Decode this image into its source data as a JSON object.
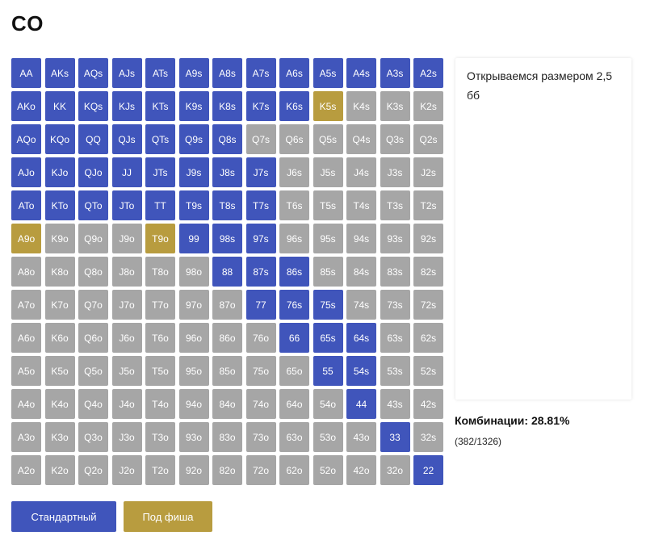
{
  "page": {
    "title": "CO"
  },
  "colors": {
    "action": "#4055bb",
    "fold": "#a6a6a6",
    "limp": "#b89c3f"
  },
  "grid": {
    "rows": [
      [
        [
          "AA",
          "a"
        ],
        [
          "AKs",
          "a"
        ],
        [
          "AQs",
          "a"
        ],
        [
          "AJs",
          "a"
        ],
        [
          "ATs",
          "a"
        ],
        [
          "A9s",
          "a"
        ],
        [
          "A8s",
          "a"
        ],
        [
          "A7s",
          "a"
        ],
        [
          "A6s",
          "a"
        ],
        [
          "A5s",
          "a"
        ],
        [
          "A4s",
          "a"
        ],
        [
          "A3s",
          "a"
        ],
        [
          "A2s",
          "a"
        ]
      ],
      [
        [
          "AKo",
          "a"
        ],
        [
          "KK",
          "a"
        ],
        [
          "KQs",
          "a"
        ],
        [
          "KJs",
          "a"
        ],
        [
          "KTs",
          "a"
        ],
        [
          "K9s",
          "a"
        ],
        [
          "K8s",
          "a"
        ],
        [
          "K7s",
          "a"
        ],
        [
          "K6s",
          "a"
        ],
        [
          "K5s",
          "l"
        ],
        [
          "K4s",
          "f"
        ],
        [
          "K3s",
          "f"
        ],
        [
          "K2s",
          "f"
        ]
      ],
      [
        [
          "AQo",
          "a"
        ],
        [
          "KQo",
          "a"
        ],
        [
          "QQ",
          "a"
        ],
        [
          "QJs",
          "a"
        ],
        [
          "QTs",
          "a"
        ],
        [
          "Q9s",
          "a"
        ],
        [
          "Q8s",
          "a"
        ],
        [
          "Q7s",
          "f"
        ],
        [
          "Q6s",
          "f"
        ],
        [
          "Q5s",
          "f"
        ],
        [
          "Q4s",
          "f"
        ],
        [
          "Q3s",
          "f"
        ],
        [
          "Q2s",
          "f"
        ]
      ],
      [
        [
          "AJo",
          "a"
        ],
        [
          "KJo",
          "a"
        ],
        [
          "QJo",
          "a"
        ],
        [
          "JJ",
          "a"
        ],
        [
          "JTs",
          "a"
        ],
        [
          "J9s",
          "a"
        ],
        [
          "J8s",
          "a"
        ],
        [
          "J7s",
          "a"
        ],
        [
          "J6s",
          "f"
        ],
        [
          "J5s",
          "f"
        ],
        [
          "J4s",
          "f"
        ],
        [
          "J3s",
          "f"
        ],
        [
          "J2s",
          "f"
        ]
      ],
      [
        [
          "ATo",
          "a"
        ],
        [
          "KTo",
          "a"
        ],
        [
          "QTo",
          "a"
        ],
        [
          "JTo",
          "a"
        ],
        [
          "TT",
          "a"
        ],
        [
          "T9s",
          "a"
        ],
        [
          "T8s",
          "a"
        ],
        [
          "T7s",
          "a"
        ],
        [
          "T6s",
          "f"
        ],
        [
          "T5s",
          "f"
        ],
        [
          "T4s",
          "f"
        ],
        [
          "T3s",
          "f"
        ],
        [
          "T2s",
          "f"
        ]
      ],
      [
        [
          "A9o",
          "l"
        ],
        [
          "K9o",
          "f"
        ],
        [
          "Q9o",
          "f"
        ],
        [
          "J9o",
          "f"
        ],
        [
          "T9o",
          "l"
        ],
        [
          "99",
          "a"
        ],
        [
          "98s",
          "a"
        ],
        [
          "97s",
          "a"
        ],
        [
          "96s",
          "f"
        ],
        [
          "95s",
          "f"
        ],
        [
          "94s",
          "f"
        ],
        [
          "93s",
          "f"
        ],
        [
          "92s",
          "f"
        ]
      ],
      [
        [
          "A8o",
          "f"
        ],
        [
          "K8o",
          "f"
        ],
        [
          "Q8o",
          "f"
        ],
        [
          "J8o",
          "f"
        ],
        [
          "T8o",
          "f"
        ],
        [
          "98o",
          "f"
        ],
        [
          "88",
          "a"
        ],
        [
          "87s",
          "a"
        ],
        [
          "86s",
          "a"
        ],
        [
          "85s",
          "f"
        ],
        [
          "84s",
          "f"
        ],
        [
          "83s",
          "f"
        ],
        [
          "82s",
          "f"
        ]
      ],
      [
        [
          "A7o",
          "f"
        ],
        [
          "K7o",
          "f"
        ],
        [
          "Q7o",
          "f"
        ],
        [
          "J7o",
          "f"
        ],
        [
          "T7o",
          "f"
        ],
        [
          "97o",
          "f"
        ],
        [
          "87o",
          "f"
        ],
        [
          "77",
          "a"
        ],
        [
          "76s",
          "a"
        ],
        [
          "75s",
          "a"
        ],
        [
          "74s",
          "f"
        ],
        [
          "73s",
          "f"
        ],
        [
          "72s",
          "f"
        ]
      ],
      [
        [
          "A6o",
          "f"
        ],
        [
          "K6o",
          "f"
        ],
        [
          "Q6o",
          "f"
        ],
        [
          "J6o",
          "f"
        ],
        [
          "T6o",
          "f"
        ],
        [
          "96o",
          "f"
        ],
        [
          "86o",
          "f"
        ],
        [
          "76o",
          "f"
        ],
        [
          "66",
          "a"
        ],
        [
          "65s",
          "a"
        ],
        [
          "64s",
          "a"
        ],
        [
          "63s",
          "f"
        ],
        [
          "62s",
          "f"
        ]
      ],
      [
        [
          "A5o",
          "f"
        ],
        [
          "K5o",
          "f"
        ],
        [
          "Q5o",
          "f"
        ],
        [
          "J5o",
          "f"
        ],
        [
          "T5o",
          "f"
        ],
        [
          "95o",
          "f"
        ],
        [
          "85o",
          "f"
        ],
        [
          "75o",
          "f"
        ],
        [
          "65o",
          "f"
        ],
        [
          "55",
          "a"
        ],
        [
          "54s",
          "a"
        ],
        [
          "53s",
          "f"
        ],
        [
          "52s",
          "f"
        ]
      ],
      [
        [
          "A4o",
          "f"
        ],
        [
          "K4o",
          "f"
        ],
        [
          "Q4o",
          "f"
        ],
        [
          "J4o",
          "f"
        ],
        [
          "T4o",
          "f"
        ],
        [
          "94o",
          "f"
        ],
        [
          "84o",
          "f"
        ],
        [
          "74o",
          "f"
        ],
        [
          "64o",
          "f"
        ],
        [
          "54o",
          "f"
        ],
        [
          "44",
          "a"
        ],
        [
          "43s",
          "f"
        ],
        [
          "42s",
          "f"
        ]
      ],
      [
        [
          "A3o",
          "f"
        ],
        [
          "K3o",
          "f"
        ],
        [
          "Q3o",
          "f"
        ],
        [
          "J3o",
          "f"
        ],
        [
          "T3o",
          "f"
        ],
        [
          "93o",
          "f"
        ],
        [
          "83o",
          "f"
        ],
        [
          "73o",
          "f"
        ],
        [
          "63o",
          "f"
        ],
        [
          "53o",
          "f"
        ],
        [
          "43o",
          "f"
        ],
        [
          "33",
          "a"
        ],
        [
          "32s",
          "f"
        ]
      ],
      [
        [
          "A2o",
          "f"
        ],
        [
          "K2o",
          "f"
        ],
        [
          "Q2o",
          "f"
        ],
        [
          "J2o",
          "f"
        ],
        [
          "T2o",
          "f"
        ],
        [
          "92o",
          "f"
        ],
        [
          "82o",
          "f"
        ],
        [
          "72o",
          "f"
        ],
        [
          "62o",
          "f"
        ],
        [
          "52o",
          "f"
        ],
        [
          "42o",
          "f"
        ],
        [
          "32o",
          "f"
        ],
        [
          "22",
          "a"
        ]
      ]
    ]
  },
  "note": {
    "text": "Открываемся размером 2,5 бб"
  },
  "stats": {
    "combinations": "Комбинации: 28.81%",
    "count": "(382/1326)"
  },
  "buttons": {
    "standard": "Стандартный",
    "limp": "Под фиша"
  }
}
